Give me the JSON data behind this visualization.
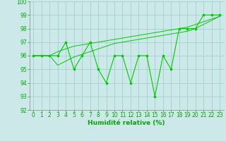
{
  "x": [
    0,
    1,
    2,
    3,
    4,
    5,
    6,
    7,
    8,
    9,
    10,
    11,
    12,
    13,
    14,
    15,
    16,
    17,
    18,
    19,
    20,
    21,
    22,
    23
  ],
  "y_main": [
    96,
    96,
    96,
    96,
    97,
    95,
    96,
    97,
    95,
    94,
    96,
    96,
    94,
    96,
    96,
    93,
    96,
    95,
    98,
    98,
    98,
    99,
    99,
    99
  ],
  "y_trend1": [
    96,
    96,
    96,
    96.3,
    96.5,
    96.7,
    96.8,
    96.9,
    97.0,
    97.1,
    97.2,
    97.3,
    97.4,
    97.5,
    97.6,
    97.7,
    97.8,
    97.9,
    98.0,
    98.1,
    98.3,
    98.5,
    98.7,
    98.9
  ],
  "y_trend2": [
    96,
    96,
    96,
    95.3,
    95.6,
    95.9,
    96.1,
    96.3,
    96.5,
    96.7,
    96.9,
    97.0,
    97.1,
    97.2,
    97.3,
    97.4,
    97.5,
    97.6,
    97.7,
    97.8,
    98.0,
    98.3,
    98.6,
    98.9
  ],
  "xlabel": "Humidité relative (%)",
  "ylim": [
    92,
    100
  ],
  "xlim": [
    -0.5,
    23.5
  ],
  "yticks": [
    92,
    93,
    94,
    95,
    96,
    97,
    98,
    99,
    100
  ],
  "xticks": [
    0,
    1,
    2,
    3,
    4,
    5,
    6,
    7,
    8,
    9,
    10,
    11,
    12,
    13,
    14,
    15,
    16,
    17,
    18,
    19,
    20,
    21,
    22,
    23
  ],
  "line_color": "#00cc00",
  "bg_color": "#cce8e8",
  "grid_color": "#99cccc",
  "font_color": "#00aa00",
  "tick_fontsize": 5.5,
  "xlabel_fontsize": 6.5
}
